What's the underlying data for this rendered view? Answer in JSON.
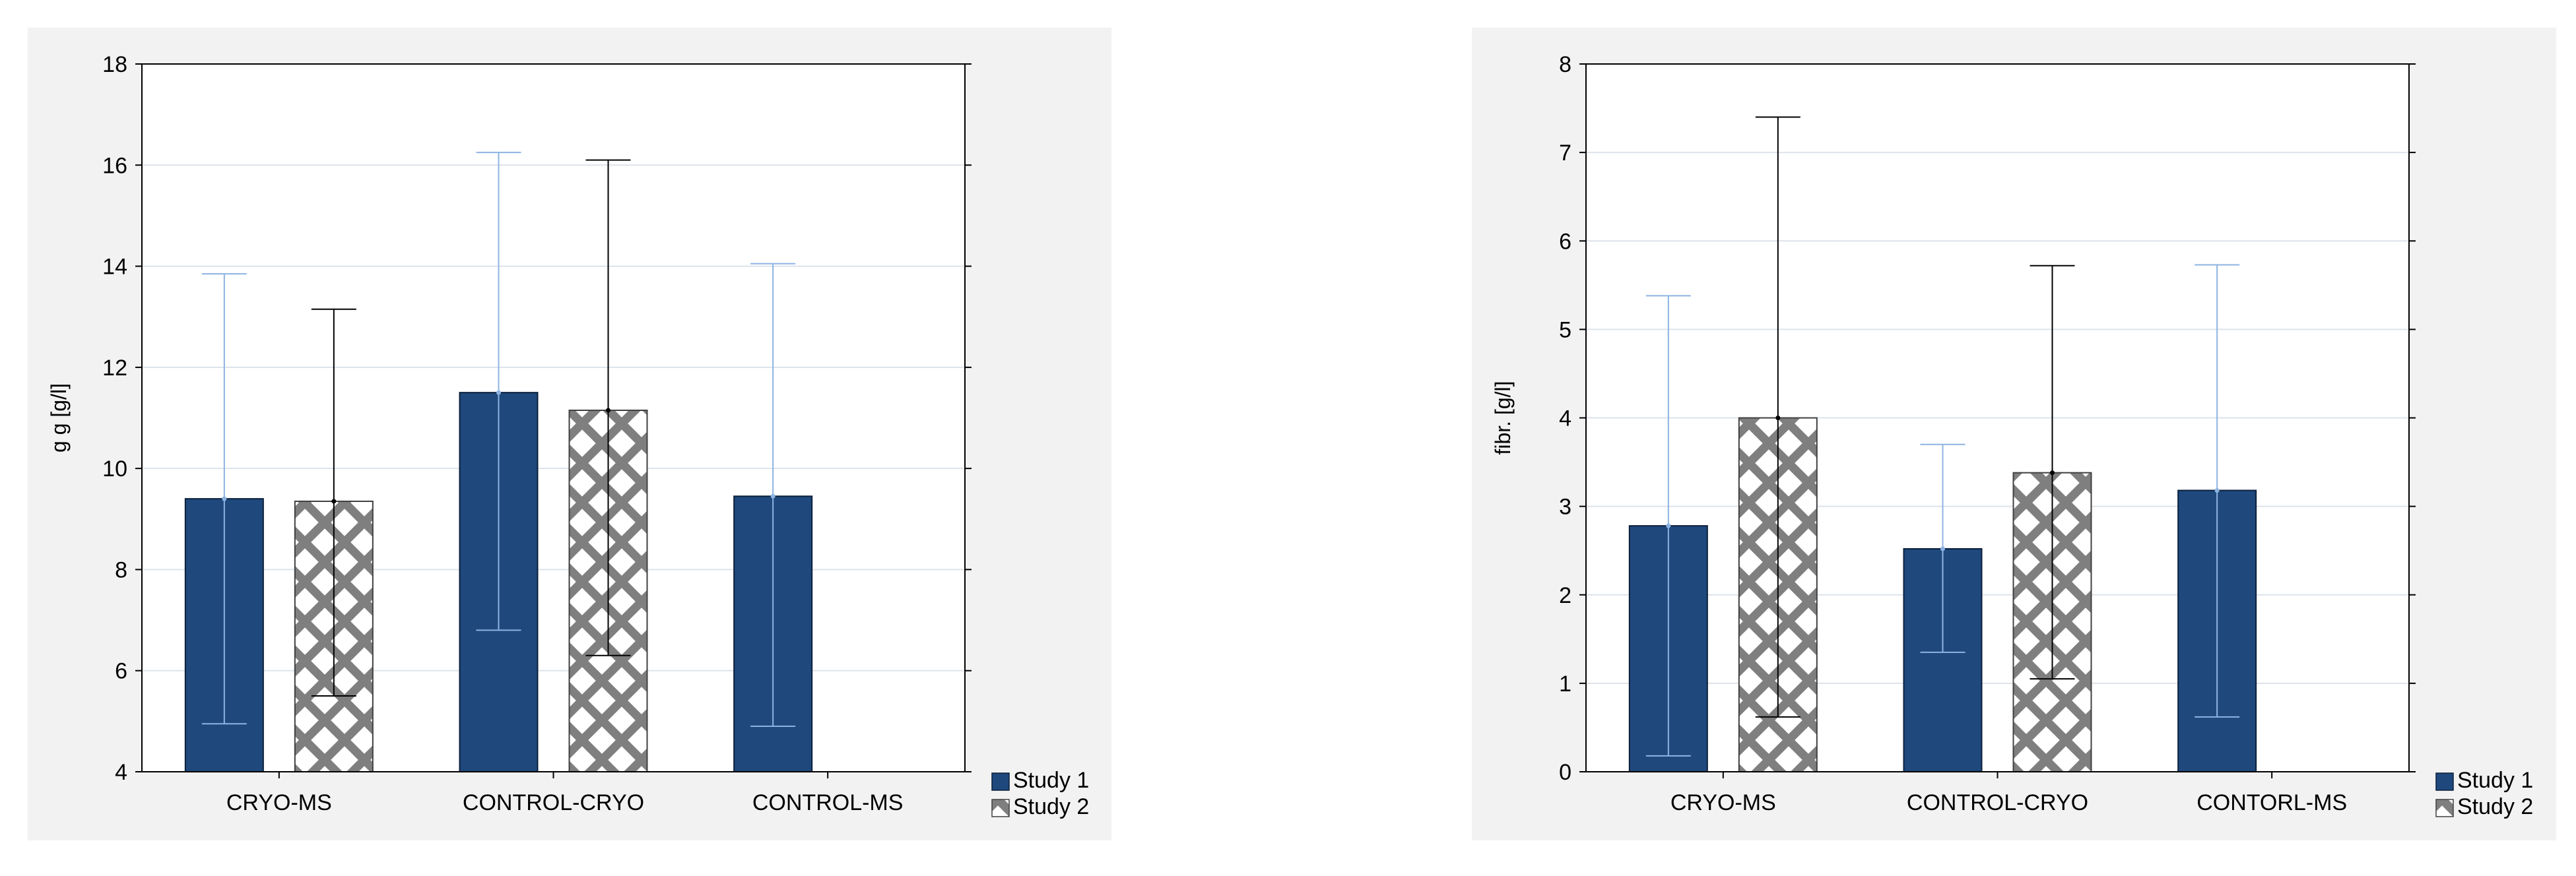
{
  "colors": {
    "study1_fill": "#1f497d",
    "study1_error": "#8db3e2",
    "study2_pattern": "#7f7f7f",
    "study2_error": "#000000",
    "grid": "#dde3ea",
    "panel_bg": "#f2f2f2"
  },
  "chart_data": [
    {
      "type": "bar",
      "title": "",
      "xlabel": "",
      "ylabel": "g g [g/l]",
      "ylim": [
        4,
        18
      ],
      "yticks": [
        "4",
        "6",
        "8",
        "10",
        "12",
        "14",
        "16",
        "18"
      ],
      "categories": [
        "CRYO-MS",
        "CONTROL-CRYO",
        "CONTROL-MS"
      ],
      "grid": true,
      "legend_position": "bottom-right",
      "series": [
        {
          "name": "Study 1",
          "values": [
            9.4,
            11.5,
            9.45
          ],
          "error_low": [
            4.95,
            6.8,
            4.9
          ],
          "error_high": [
            13.85,
            16.25,
            14.05
          ]
        },
        {
          "name": "Study 2",
          "values": [
            9.35,
            11.15,
            null
          ],
          "error_low": [
            5.5,
            6.3,
            null
          ],
          "error_high": [
            13.15,
            16.1,
            null
          ]
        }
      ]
    },
    {
      "type": "bar",
      "title": "",
      "xlabel": "",
      "ylabel": "fibr. [g/l]",
      "ylim": [
        0,
        8
      ],
      "yticks": [
        "0",
        "1",
        "2",
        "3",
        "4",
        "5",
        "6",
        "7",
        "8"
      ],
      "categories": [
        "CRYO-MS",
        "CONTROL-CRYO",
        "CONTORL-MS"
      ],
      "grid": true,
      "legend_position": "bottom-right",
      "series": [
        {
          "name": "Study 1",
          "values": [
            2.78,
            2.52,
            3.18
          ],
          "error_low": [
            0.18,
            1.35,
            0.62
          ],
          "error_high": [
            5.38,
            3.7,
            5.73
          ]
        },
        {
          "name": "Study 2",
          "values": [
            4.0,
            3.38,
            null
          ],
          "error_low": [
            0.62,
            1.05,
            null
          ],
          "error_high": [
            7.4,
            5.72,
            null
          ]
        }
      ]
    }
  ]
}
